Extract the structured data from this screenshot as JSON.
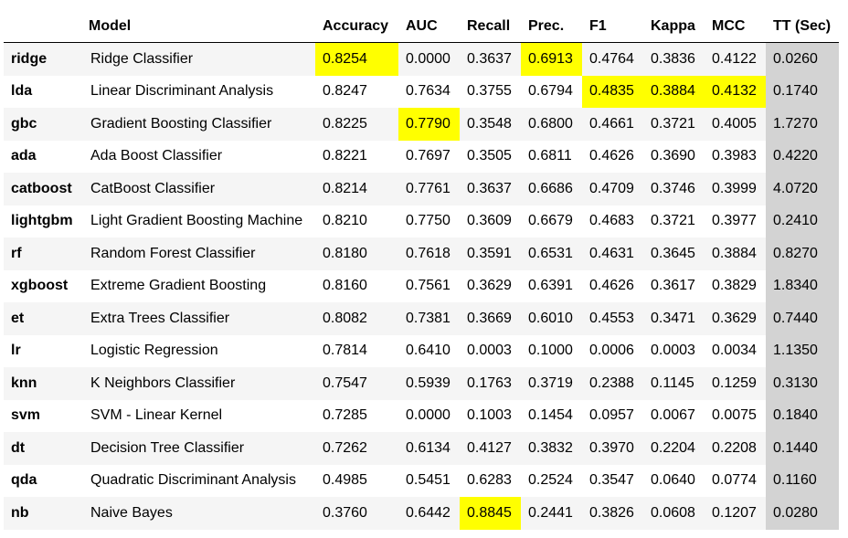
{
  "table": {
    "columns": [
      "Model",
      "Accuracy",
      "AUC",
      "Recall",
      "Prec.",
      "F1",
      "Kappa",
      "MCC",
      "TT (Sec)"
    ],
    "highlight_color": "#ffff00",
    "tt_column_color": "#d3d3d3",
    "rows": [
      {
        "id": "ridge",
        "model": "Ridge Classifier",
        "values": [
          "0.8254",
          "0.0000",
          "0.3637",
          "0.6913",
          "0.4764",
          "0.3836",
          "0.4122",
          "0.0260"
        ],
        "highlight": [
          0,
          3
        ]
      },
      {
        "id": "lda",
        "model": "Linear Discriminant Analysis",
        "values": [
          "0.8247",
          "0.7634",
          "0.3755",
          "0.6794",
          "0.4835",
          "0.3884",
          "0.4132",
          "0.1740"
        ],
        "highlight": [
          4,
          5,
          6
        ]
      },
      {
        "id": "gbc",
        "model": "Gradient Boosting Classifier",
        "values": [
          "0.8225",
          "0.7790",
          "0.3548",
          "0.6800",
          "0.4661",
          "0.3721",
          "0.4005",
          "1.7270"
        ],
        "highlight": [
          1
        ]
      },
      {
        "id": "ada",
        "model": "Ada Boost Classifier",
        "values": [
          "0.8221",
          "0.7697",
          "0.3505",
          "0.6811",
          "0.4626",
          "0.3690",
          "0.3983",
          "0.4220"
        ],
        "highlight": []
      },
      {
        "id": "catboost",
        "model": "CatBoost Classifier",
        "values": [
          "0.8214",
          "0.7761",
          "0.3637",
          "0.6686",
          "0.4709",
          "0.3746",
          "0.3999",
          "4.0720"
        ],
        "highlight": []
      },
      {
        "id": "lightgbm",
        "model": "Light Gradient Boosting Machine",
        "values": [
          "0.8210",
          "0.7750",
          "0.3609",
          "0.6679",
          "0.4683",
          "0.3721",
          "0.3977",
          "0.2410"
        ],
        "highlight": []
      },
      {
        "id": "rf",
        "model": "Random Forest Classifier",
        "values": [
          "0.8180",
          "0.7618",
          "0.3591",
          "0.6531",
          "0.4631",
          "0.3645",
          "0.3884",
          "0.8270"
        ],
        "highlight": []
      },
      {
        "id": "xgboost",
        "model": "Extreme Gradient Boosting",
        "values": [
          "0.8160",
          "0.7561",
          "0.3629",
          "0.6391",
          "0.4626",
          "0.3617",
          "0.3829",
          "1.8340"
        ],
        "highlight": []
      },
      {
        "id": "et",
        "model": "Extra Trees Classifier",
        "values": [
          "0.8082",
          "0.7381",
          "0.3669",
          "0.6010",
          "0.4553",
          "0.3471",
          "0.3629",
          "0.7440"
        ],
        "highlight": []
      },
      {
        "id": "lr",
        "model": "Logistic Regression",
        "values": [
          "0.7814",
          "0.6410",
          "0.0003",
          "0.1000",
          "0.0006",
          "0.0003",
          "0.0034",
          "1.1350"
        ],
        "highlight": []
      },
      {
        "id": "knn",
        "model": "K Neighbors Classifier",
        "values": [
          "0.7547",
          "0.5939",
          "0.1763",
          "0.3719",
          "0.2388",
          "0.1145",
          "0.1259",
          "0.3130"
        ],
        "highlight": []
      },
      {
        "id": "svm",
        "model": "SVM - Linear Kernel",
        "values": [
          "0.7285",
          "0.0000",
          "0.1003",
          "0.1454",
          "0.0957",
          "0.0067",
          "0.0075",
          "0.1840"
        ],
        "highlight": []
      },
      {
        "id": "dt",
        "model": "Decision Tree Classifier",
        "values": [
          "0.7262",
          "0.6134",
          "0.4127",
          "0.3832",
          "0.3970",
          "0.2204",
          "0.2208",
          "0.1440"
        ],
        "highlight": []
      },
      {
        "id": "qda",
        "model": "Quadratic Discriminant Analysis",
        "values": [
          "0.4985",
          "0.5451",
          "0.6283",
          "0.2524",
          "0.3547",
          "0.0640",
          "0.0774",
          "0.1160"
        ],
        "highlight": []
      },
      {
        "id": "nb",
        "model": "Naive Bayes",
        "values": [
          "0.3760",
          "0.6442",
          "0.8845",
          "0.2441",
          "0.3826",
          "0.0608",
          "0.1207",
          "0.0280"
        ],
        "highlight": [
          2
        ]
      }
    ]
  }
}
